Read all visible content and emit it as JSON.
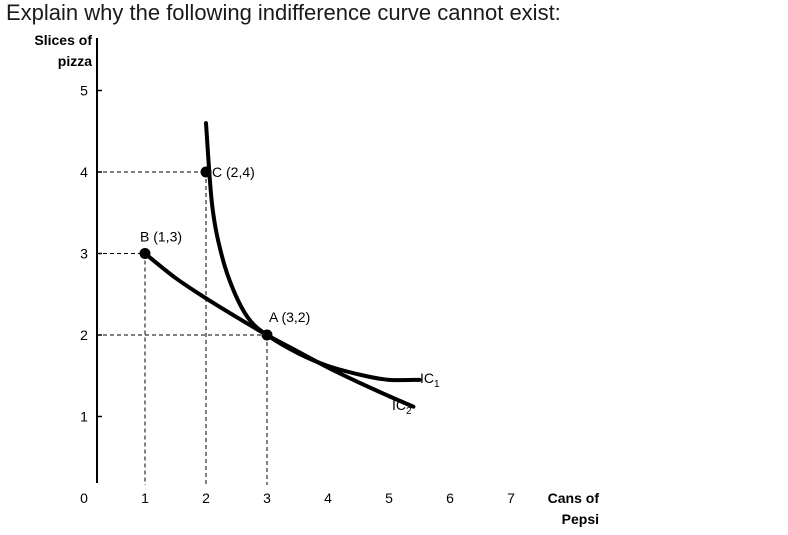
{
  "question": "Explain why the following indifference curve cannot exist:",
  "chart_data": {
    "type": "line",
    "title": "",
    "ylabel": [
      "Slices of",
      "pizza"
    ],
    "xlabel": [
      "Cans of",
      "Pepsi"
    ],
    "xlim": [
      0,
      7
    ],
    "ylim": [
      0,
      5
    ],
    "x_ticks": [
      "0",
      "1",
      "2",
      "3",
      "4",
      "5",
      "6",
      "7"
    ],
    "y_ticks": [
      "1",
      "2",
      "3",
      "4",
      "5"
    ],
    "grid": false,
    "points": [
      {
        "label": "B (1,3)",
        "x": 1,
        "y": 3
      },
      {
        "label": "C (2,4)",
        "x": 2,
        "y": 4
      },
      {
        "label": "A (3,2)",
        "x": 3,
        "y": 2
      }
    ],
    "series": [
      {
        "name": "IC1",
        "label_main": "IC",
        "label_sub": "1",
        "x": [
          2.0,
          2.1,
          2.25,
          2.45,
          2.7,
          3.0,
          3.5,
          4.0,
          4.6,
          5.0,
          5.5
        ],
        "y": [
          4.6,
          3.6,
          3.0,
          2.55,
          2.2,
          2.0,
          1.78,
          1.62,
          1.5,
          1.45,
          1.45
        ]
      },
      {
        "name": "IC2",
        "label_main": "IC",
        "label_sub": "2",
        "x": [
          1.0,
          1.5,
          2.0,
          2.5,
          3.0,
          3.5,
          4.0,
          4.5,
          5.0,
          5.4
        ],
        "y": [
          3.0,
          2.7,
          2.45,
          2.22,
          2.0,
          1.8,
          1.6,
          1.42,
          1.25,
          1.12
        ]
      }
    ]
  }
}
